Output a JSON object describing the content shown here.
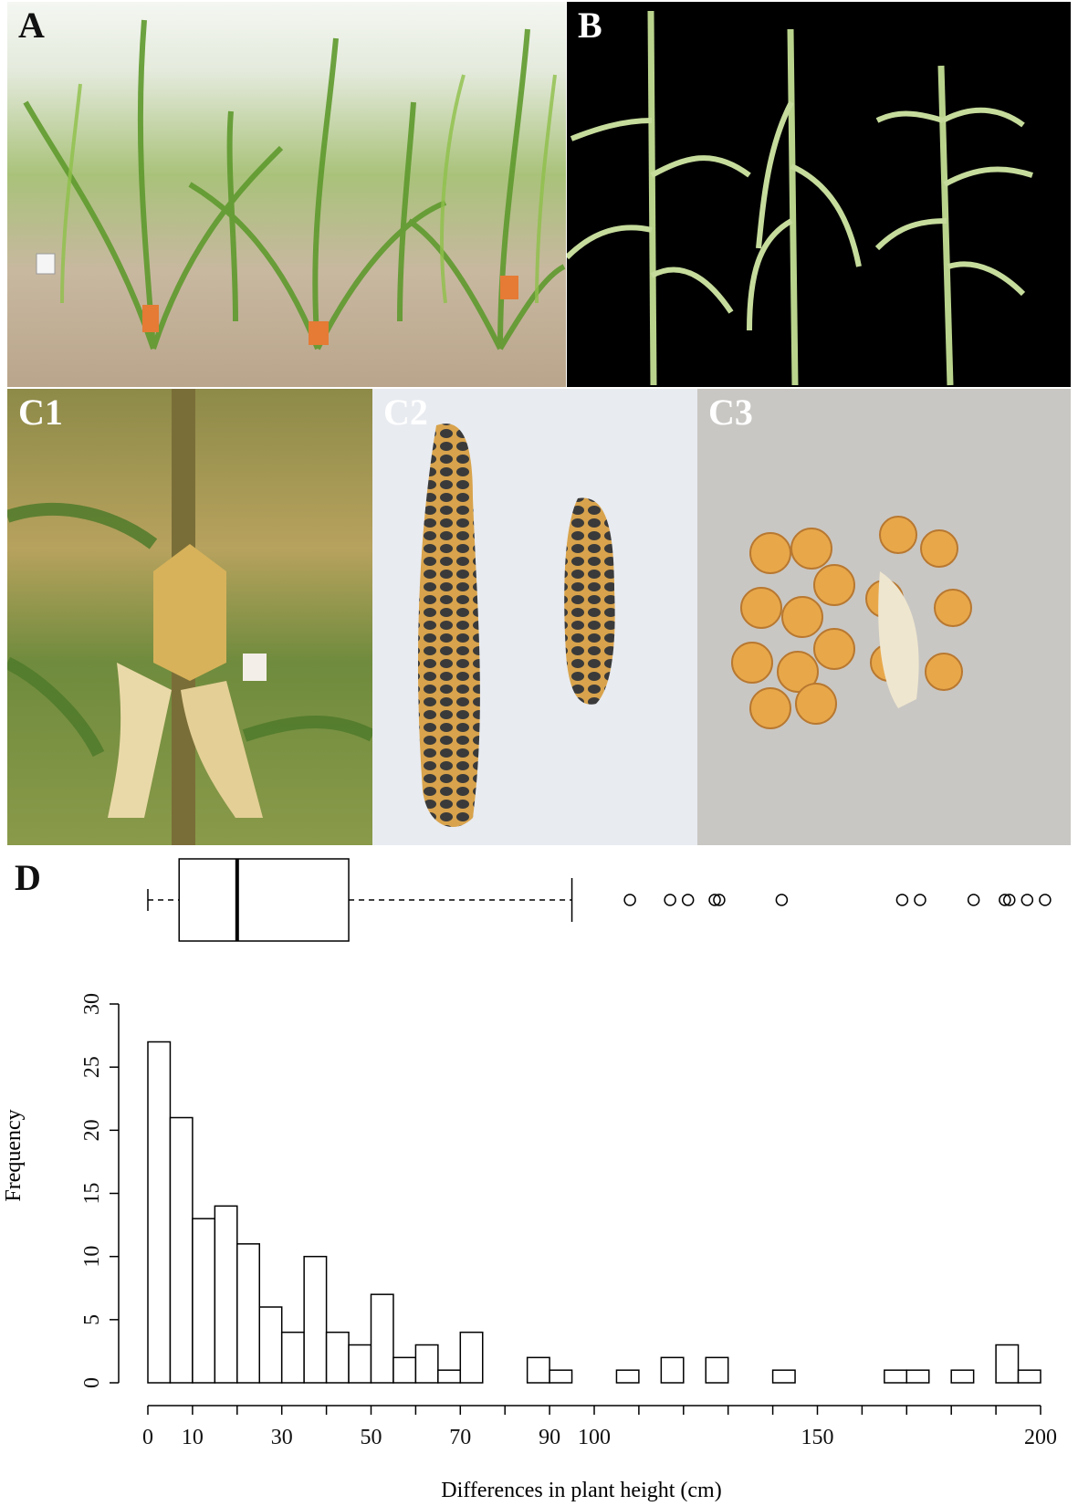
{
  "panels": {
    "A": {
      "label": "A"
    },
    "B": {
      "label": "B"
    },
    "C1": {
      "label": "C1"
    },
    "C2": {
      "label": "C2"
    },
    "C3": {
      "label": "C3"
    },
    "D": {
      "label": "D"
    }
  },
  "colors": {
    "bar_fill": "#ffffff",
    "stroke": "#000000"
  },
  "chart_data": {
    "type": "bar",
    "title": "",
    "xlabel": "Differences in plant height (cm)",
    "ylabel": "Frequency",
    "xlim": [
      0,
      200
    ],
    "ylim": [
      0,
      30
    ],
    "xticks_minor": [
      0,
      10,
      20,
      30,
      40,
      50,
      60,
      70,
      80,
      90,
      100,
      110,
      120,
      130,
      140,
      150,
      160,
      170,
      180,
      190,
      200
    ],
    "xtick_labels": [
      "0",
      "10",
      "30",
      "50",
      "70",
      "90",
      "100",
      "150",
      "200"
    ],
    "yticks": [
      0,
      5,
      10,
      15,
      20,
      25,
      30
    ],
    "bin_width": 5,
    "bin_starts": [
      0,
      5,
      10,
      15,
      20,
      25,
      30,
      35,
      40,
      45,
      50,
      55,
      60,
      65,
      70,
      75,
      80,
      85,
      90,
      95,
      100,
      105,
      110,
      115,
      120,
      125,
      130,
      135,
      140,
      145,
      150,
      155,
      160,
      165,
      170,
      175,
      180,
      185,
      190,
      195
    ],
    "values": [
      27,
      21,
      13,
      14,
      11,
      6,
      4,
      10,
      4,
      3,
      7,
      2,
      3,
      1,
      4,
      0,
      0,
      2,
      1,
      0,
      0,
      1,
      0,
      2,
      0,
      2,
      0,
      0,
      1,
      0,
      0,
      0,
      0,
      1,
      1,
      0,
      1,
      0,
      3,
      1
    ],
    "boxplot": {
      "min": 0,
      "q1": 7,
      "median": 20,
      "q3": 45,
      "whisker_high": 95,
      "outliers": [
        108,
        117,
        121,
        127,
        128,
        142,
        169,
        173,
        185,
        192,
        193,
        197,
        201
      ]
    }
  }
}
